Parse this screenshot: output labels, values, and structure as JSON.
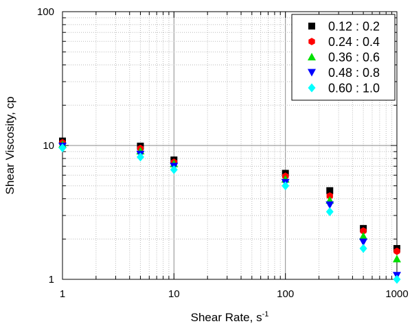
{
  "chart_data": {
    "type": "scatter",
    "x_scale": "log",
    "y_scale": "log",
    "xlim": [
      1,
      1000
    ],
    "ylim": [
      1,
      100
    ],
    "grid": true,
    "legend_position": "top-right",
    "xlabel": "Shear Rate, s",
    "xlabel_sup": "-1",
    "ylabel": "Shear Viscosity, cp",
    "x_ticks": [
      {
        "value": 1,
        "label": "1"
      },
      {
        "value": 10,
        "label": "10"
      },
      {
        "value": 100,
        "label": "100"
      },
      {
        "value": 1000,
        "label": "1000"
      }
    ],
    "y_ticks": [
      {
        "value": 1,
        "label": "1"
      },
      {
        "value": 10,
        "label": "10"
      },
      {
        "value": 100,
        "label": "100"
      }
    ],
    "series": [
      {
        "name": "0.12 : 0.2",
        "marker": "square",
        "color": "#000000",
        "x": [
          1,
          5,
          10,
          100,
          250,
          500,
          1000
        ],
        "y": [
          10.8,
          9.9,
          7.8,
          6.2,
          4.6,
          2.4,
          1.7
        ]
      },
      {
        "name": "0.24 : 0.4",
        "marker": "hexagon",
        "color": "#ff0000",
        "x": [
          1,
          5,
          10,
          100,
          250,
          500,
          1000
        ],
        "y": [
          10.5,
          9.5,
          7.5,
          5.9,
          4.2,
          2.3,
          1.62
        ]
      },
      {
        "name": "0.36 : 0.6",
        "marker": "triangle-up",
        "color": "#00e000",
        "x": [
          1,
          5,
          10,
          100,
          250,
          500,
          1000
        ],
        "y": [
          10.2,
          9.1,
          7.3,
          5.6,
          3.9,
          2.1,
          1.42
        ]
      },
      {
        "name": "0.48 : 0.8",
        "marker": "triangle-down",
        "color": "#0000ff",
        "x": [
          1,
          5,
          10,
          100,
          250,
          500,
          1000
        ],
        "y": [
          9.9,
          8.6,
          7.0,
          5.3,
          3.6,
          1.9,
          1.07
        ]
      },
      {
        "name": "0.60 : 1.0",
        "marker": "diamond",
        "color": "#00ffff",
        "x": [
          1,
          5,
          10,
          100,
          250,
          500,
          1000
        ],
        "y": [
          9.6,
          8.2,
          6.6,
          5.0,
          3.2,
          1.7,
          1.0
        ]
      }
    ]
  }
}
